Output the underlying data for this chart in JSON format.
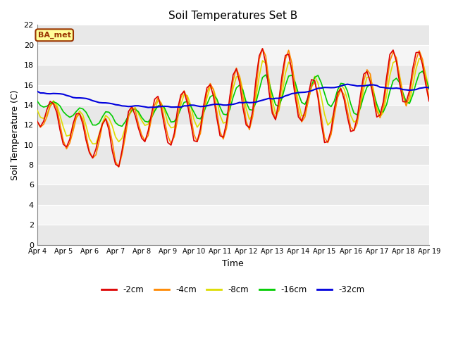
{
  "title": "Soil Temperatures Set B",
  "xlabel": "Time",
  "ylabel": "Soil Temperature (C)",
  "annotation": "BA_met",
  "ylim": [
    0,
    22
  ],
  "yticks": [
    0,
    2,
    4,
    6,
    8,
    10,
    12,
    14,
    16,
    18,
    20,
    22
  ],
  "xtick_labels": [
    "Apr 4",
    "Apr 5",
    "Apr 6",
    "Apr 7",
    "Apr 8",
    "Apr 9",
    "Apr 10",
    "Apr 11",
    "Apr 12",
    "Apr 13",
    "Apr 14",
    "Apr 15",
    "Apr 16",
    "Apr 17",
    "Apr 18",
    "Apr 19"
  ],
  "series_colors": {
    "d2cm": "#dd0000",
    "d4cm": "#ff8800",
    "d8cm": "#dddd00",
    "d16cm": "#00cc00",
    "d32cm": "#0000dd"
  },
  "legend_linecolors": [
    "#dd0000",
    "#ff8800",
    "#dddd00",
    "#00cc00",
    "#0000dd"
  ],
  "legend_labels": [
    "-2cm",
    "-4cm",
    "-8cm",
    "-16cm",
    "-32cm"
  ],
  "fig_bg": "#ffffff",
  "plot_bg": "#d8d8d8",
  "grid_color": "#f0f0f0",
  "annotation_bg": "#ffff99",
  "annotation_border": "#993300",
  "annotation_text_color": "#993300"
}
